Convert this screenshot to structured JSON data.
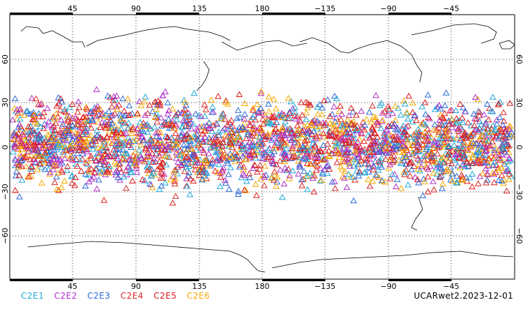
{
  "chart_data": {
    "type": "scatter",
    "projection": "equirectangular, centered on 180",
    "lon_range": [
      0,
      360
    ],
    "lat_range": [
      -90,
      90
    ],
    "x_tick_labels_top": [
      "45",
      "90",
      "135",
      "180",
      "−135",
      "−90",
      "−45"
    ],
    "x_tick_labels_bottom": [
      "45",
      "90",
      "135",
      "180",
      "−135",
      "−90",
      "−45"
    ],
    "y_tick_labels": [
      "60",
      "30",
      "0",
      "−30",
      "−60"
    ],
    "grid": "dotted",
    "marker": "open triangle",
    "point_latitude_band": [
      -40,
      45
    ],
    "series": [
      {
        "name": "C2E1",
        "color": "#1fa8d8"
      },
      {
        "name": "C2E2",
        "color": "#b030c8"
      },
      {
        "name": "C2E3",
        "color": "#2a6ad8"
      },
      {
        "name": "C2E4",
        "color": "#d82828"
      },
      {
        "name": "C2E5",
        "color": "#e01818"
      },
      {
        "name": "C2E6",
        "color": "#f5a800"
      }
    ]
  },
  "stamp": "UCARwet2.2023-12-01"
}
